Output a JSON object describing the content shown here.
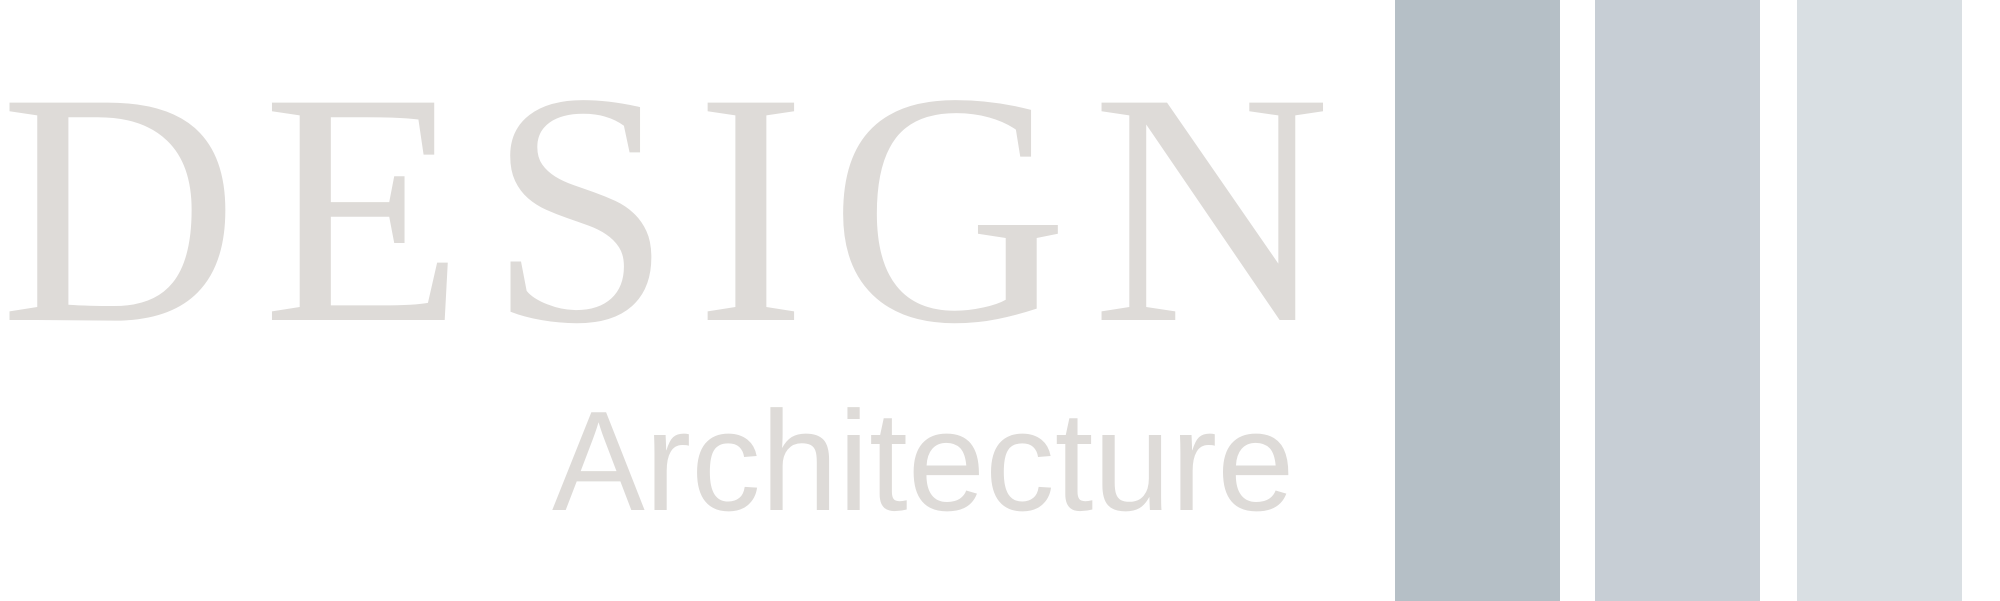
{
  "logo": {
    "title": "DESIGN",
    "subtitle": "Architecture"
  },
  "colors": {
    "text": "#dedbd8",
    "bars": [
      "#b5bfc6",
      "#c7ced5",
      "#d9dfe3"
    ],
    "background": "#ffffff"
  }
}
